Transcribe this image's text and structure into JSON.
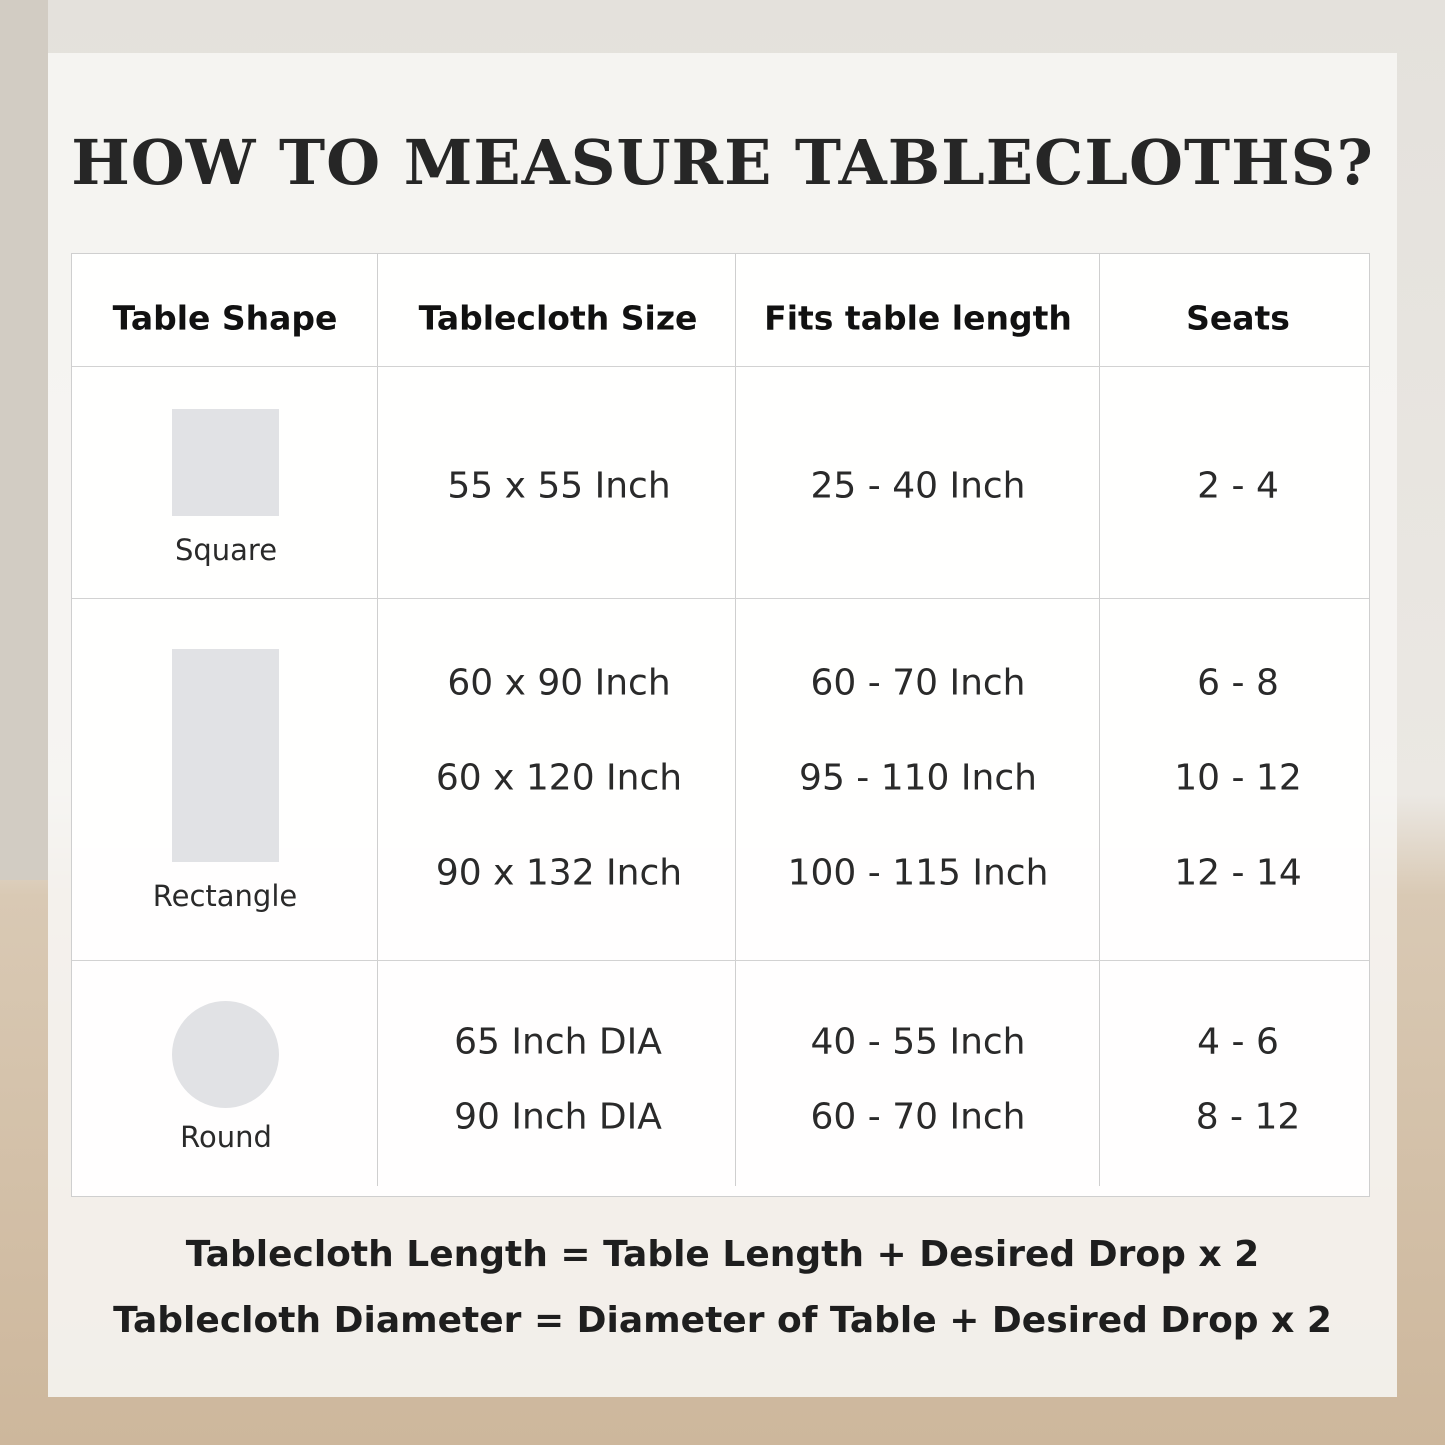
{
  "title": "HOW TO MEASURE TABLECLOTHS?",
  "table": {
    "headers": [
      "Table Shape",
      "Tablecloth Size",
      "Fits table length",
      "Seats"
    ],
    "rows": [
      {
        "shape": "Square",
        "icon": "square-shape-icon",
        "sizes": [
          "55 x 55 Inch"
        ],
        "fits": [
          "25 - 40 Inch"
        ],
        "seats": [
          "2 - 4"
        ]
      },
      {
        "shape": "Rectangle",
        "icon": "rectangle-shape-icon",
        "sizes": [
          "60 x 90 Inch",
          "60 x 120 Inch",
          "90 x 132 Inch"
        ],
        "fits": [
          "60 - 70 Inch",
          "95 - 110 Inch",
          "100 - 115 Inch"
        ],
        "seats": [
          "6 - 8",
          "10 - 12",
          "12 - 14"
        ]
      },
      {
        "shape": "Round",
        "icon": "circle-shape-icon",
        "sizes": [
          "65 Inch DIA",
          "90 Inch DIA"
        ],
        "fits": [
          "40 - 55 Inch",
          "60 - 70 Inch"
        ],
        "seats": [
          "4 - 6",
          "8 - 12"
        ]
      }
    ]
  },
  "formulas": [
    "Tablecloth Length = Table Length + Desired Drop x 2",
    "Tablecloth Diameter = Diameter of Table + Desired Drop x 2"
  ],
  "colors": {
    "shape_fill": "#e1e2e5",
    "text": "#262626"
  }
}
